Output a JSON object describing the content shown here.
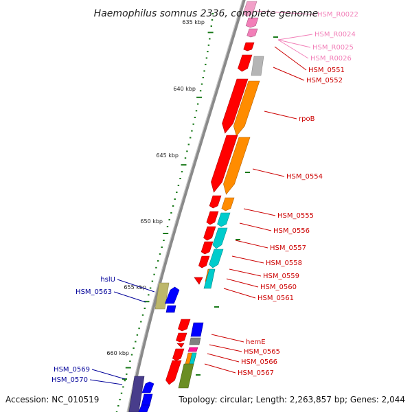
{
  "title": "Haemophilus somnus 2336, complete genome",
  "footer": {
    "accession": "Accession: NC_010519",
    "summary": "Topology: circular; Length: 2,263,857 bp; Genes: 2,044"
  },
  "colors": {
    "backbone": "#8a8a8a",
    "tick": "#1a7a1a",
    "rna_label": "#f27fb8",
    "forward_label": "#cc0000",
    "reverse_label": "#000099"
  },
  "chart_data": {
    "type": "genome_map",
    "tick_labels": [
      {
        "text": "635 kbp",
        "kbp": 635
      },
      {
        "text": "640 kbp",
        "kbp": 640
      },
      {
        "text": "645 kbp",
        "kbp": 645
      },
      {
        "text": "650 kbp",
        "kbp": 650
      },
      {
        "text": "655 kbp",
        "kbp": 655
      },
      {
        "text": "660 kbp",
        "kbp": 660
      }
    ],
    "features": [
      {
        "name": "HSM_R0022",
        "type": "rna",
        "strand": "+",
        "color": "#f27fb8"
      },
      {
        "name": "HSM_R0024",
        "type": "rna",
        "strand": "+",
        "color": "#f27fb8"
      },
      {
        "name": "HSM_R0025",
        "type": "rna",
        "strand": "+",
        "color": "#f27fb8"
      },
      {
        "name": "HSM_R0026",
        "type": "rna",
        "strand": "+",
        "color": "#f27fb8"
      },
      {
        "name": "HSM_0551",
        "type": "gene",
        "strand": "+",
        "color": "#ff0000"
      },
      {
        "name": "HSM_0552",
        "type": "gene",
        "strand": "+",
        "color": "#b5b5b5"
      },
      {
        "name": "rpoB",
        "type": "gene",
        "strand": "+",
        "color": "#ff8c00"
      },
      {
        "name": "HSM_0554",
        "type": "gene",
        "strand": "+",
        "color": "#ff8c00"
      },
      {
        "name": "HSM_0555",
        "type": "gene",
        "strand": "+",
        "color": "#ff8c00"
      },
      {
        "name": "HSM_0556",
        "type": "gene",
        "strand": "+",
        "color": "#00cccc"
      },
      {
        "name": "HSM_0557",
        "type": "gene",
        "strand": "+",
        "color": "#00cccc"
      },
      {
        "name": "HSM_0558",
        "type": "gene",
        "strand": "+",
        "color": "#00cccc"
      },
      {
        "name": "HSM_0559",
        "type": "gene",
        "strand": "+",
        "color": "#ff8c00"
      },
      {
        "name": "HSM_0560",
        "type": "gene",
        "strand": "+",
        "color": "#00cccc"
      },
      {
        "name": "HSM_0561",
        "type": "gene",
        "strand": "+",
        "color": "#ff0000"
      },
      {
        "name": "hslU",
        "type": "gene",
        "strand": "-",
        "color": "#bdb76b"
      },
      {
        "name": "HSM_0563",
        "type": "gene",
        "strand": "-",
        "color": "#0000ff"
      },
      {
        "name": "hemE",
        "type": "gene",
        "strand": "+",
        "color": "#808080"
      },
      {
        "name": "HSM_0565",
        "type": "gene",
        "strand": "+",
        "color": "#ff1493"
      },
      {
        "name": "HSM_0566",
        "type": "gene",
        "strand": "+",
        "color": "#00cccc"
      },
      {
        "name": "HSM_0567",
        "type": "gene",
        "strand": "+",
        "color": "#6b8e23"
      },
      {
        "name": "HSM_0569",
        "type": "gene",
        "strand": "-",
        "color": "#483d8b"
      },
      {
        "name": "HSM_0570",
        "type": "gene",
        "strand": "-",
        "color": "#0000ff"
      }
    ]
  }
}
